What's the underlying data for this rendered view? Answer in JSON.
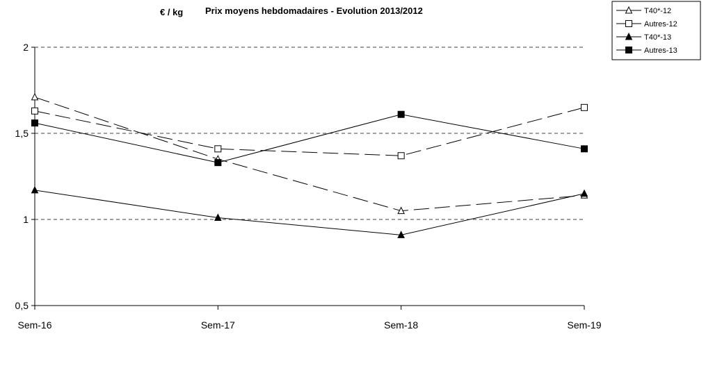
{
  "chart_data": {
    "type": "line",
    "title": "Prix moyens hebdomadaires - Evolution  2013/2012",
    "ylabel": "€ / kg",
    "xlabel": "",
    "categories": [
      "Sem-16",
      "Sem-17",
      "Sem-18",
      "Sem-19"
    ],
    "ylim": [
      0.5,
      2
    ],
    "yticks": [
      0.5,
      1,
      1.5,
      2
    ],
    "ytick_labels": [
      "0,5",
      "1",
      "1,5",
      "2"
    ],
    "grid": "horizontal dashed",
    "legend_position": "top-right",
    "series": [
      {
        "name": "T40*-12",
        "values": [
          1.71,
          1.35,
          1.05,
          1.14
        ],
        "marker": "triangle-open",
        "dash": "long-dash",
        "color": "#000000"
      },
      {
        "name": "Autres-12",
        "values": [
          1.63,
          1.41,
          1.37,
          1.65
        ],
        "marker": "square-open",
        "dash": "long-dash",
        "color": "#000000"
      },
      {
        "name": "T40*-13",
        "values": [
          1.17,
          1.01,
          0.91,
          1.15
        ],
        "marker": "triangle-filled",
        "dash": "solid",
        "color": "#000000"
      },
      {
        "name": "Autres-13",
        "values": [
          1.56,
          1.33,
          1.61,
          1.41
        ],
        "marker": "square-filled",
        "dash": "solid",
        "color": "#000000"
      }
    ]
  }
}
